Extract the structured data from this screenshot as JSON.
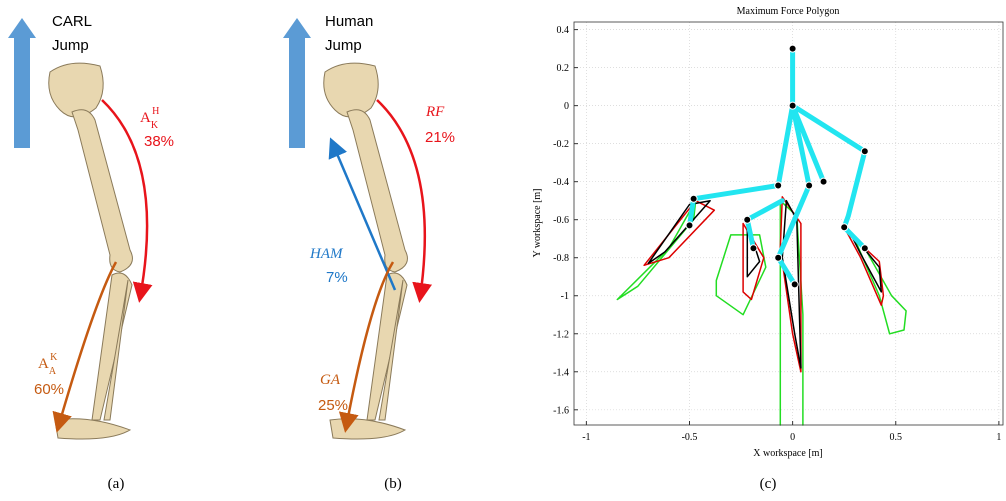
{
  "panel_a": {
    "caption": "(a)",
    "arrow_title": "CARL",
    "arrow_subtitle": "Jump",
    "upper_label": {
      "base": "A",
      "sup": "H",
      "sub": "K"
    },
    "upper_value": "38%",
    "lower_label": {
      "base": "A",
      "sup": "K",
      "sub": "A"
    },
    "lower_value": "60%"
  },
  "panel_b": {
    "caption": "(b)",
    "arrow_title": "Human",
    "arrow_subtitle": "Jump",
    "rf_label": "RF",
    "rf_value": "21%",
    "ham_label": "HAM",
    "ham_value": "7%",
    "ga_label": "GA",
    "ga_value": "25%"
  },
  "chart_data": {
    "type": "line",
    "caption": "(c)",
    "title": "Maximum Force Polygon",
    "x_label": "X workspace [m]",
    "y_label": "Y workspace [m]",
    "xlim": [
      -1.06,
      1.02
    ],
    "ylim": [
      -1.68,
      0.44
    ],
    "xticks": [
      -1,
      -0.5,
      0,
      0.5,
      1
    ],
    "yticks": [
      -1.6,
      -1.4,
      -1.2,
      -1,
      -0.8,
      -0.6,
      -0.4,
      -0.2,
      0,
      0.2,
      0.4
    ],
    "grid": true,
    "series": [
      {
        "color": "#22dd22",
        "width": 1.5,
        "x": [
          -0.47,
          -0.6,
          -0.85,
          -0.75,
          -0.48,
          -0.47,
          null,
          -0.3,
          -0.37,
          -0.37,
          -0.24,
          -0.13,
          -0.16,
          -0.3,
          null,
          -0.06,
          -0.06,
          null,
          0.05,
          0.05,
          0.02,
          -0.06,
          null,
          0.25,
          0.35,
          0.48,
          0.55,
          0.54,
          0.47,
          0.42,
          0.3,
          0.25
        ],
        "y": [
          -0.5,
          -0.75,
          -1.02,
          -0.95,
          -0.6,
          -0.5,
          null,
          -0.68,
          -0.92,
          -1.0,
          -1.1,
          -0.85,
          -0.68,
          -0.68,
          null,
          -0.5,
          -1.68,
          null,
          -1.68,
          -1.1,
          -0.58,
          -0.5,
          null,
          -0.64,
          -0.75,
          -1.0,
          -1.08,
          -1.18,
          -1.2,
          -1.0,
          -0.7,
          -0.64
        ]
      },
      {
        "color": "#dd0000",
        "width": 1.5,
        "x": [
          -0.47,
          -0.72,
          -0.6,
          -0.38,
          -0.47,
          null,
          -0.24,
          -0.24,
          -0.2,
          -0.14,
          -0.24,
          null,
          -0.05,
          -0.06,
          0.0,
          0.04,
          0.04,
          -0.05,
          null,
          0.26,
          0.42,
          0.44,
          0.43,
          0.33,
          0.26
        ],
        "y": [
          -0.5,
          -0.84,
          -0.8,
          -0.55,
          -0.5,
          null,
          -0.62,
          -0.98,
          -1.02,
          -0.8,
          -0.62,
          null,
          -0.48,
          -0.75,
          -1.2,
          -1.4,
          -0.62,
          -0.48,
          null,
          -0.66,
          -0.82,
          -1.0,
          -1.05,
          -0.8,
          -0.66
        ]
      },
      {
        "color": "#000000",
        "width": 1.5,
        "x": [
          -0.5,
          -0.7,
          -0.62,
          -0.4,
          -0.5,
          null,
          -0.22,
          -0.22,
          -0.16,
          -0.22,
          null,
          -0.03,
          -0.05,
          0.01,
          0.04,
          0.02,
          -0.03,
          null,
          0.27,
          0.42,
          0.43,
          0.33,
          0.27
        ],
        "y": [
          -0.52,
          -0.83,
          -0.77,
          -0.5,
          -0.52,
          null,
          -0.62,
          -0.9,
          -0.82,
          -0.62,
          null,
          -0.5,
          -0.8,
          -1.2,
          -1.38,
          -0.6,
          -0.5,
          null,
          -0.65,
          -0.85,
          -0.98,
          -0.78,
          -0.65
        ]
      },
      {
        "color": "#22e5f0",
        "width": 5,
        "x": [
          0,
          0,
          null,
          0,
          0.35,
          0.27,
          0.25,
          null,
          0,
          -0.07,
          -0.48,
          -0.5,
          null,
          0,
          0.08,
          -0.07,
          0.01,
          null,
          0,
          0.15,
          null,
          -0.05,
          -0.22,
          -0.19,
          null,
          0.25,
          0.35
        ],
        "y": [
          0.3,
          0,
          null,
          0,
          -0.24,
          -0.58,
          -0.64,
          null,
          0,
          -0.42,
          -0.49,
          -0.63,
          null,
          0,
          -0.42,
          -0.8,
          -0.94,
          null,
          0,
          -0.4,
          null,
          -0.5,
          -0.6,
          -0.75,
          null,
          -0.64,
          -0.75
        ]
      },
      {
        "color": "#000000",
        "marker": true,
        "x": [
          0,
          0,
          0.35,
          -0.48,
          -0.07,
          0.08,
          0.15,
          0.25,
          0.35,
          -0.5,
          -0.22,
          -0.19,
          -0.07,
          0.01
        ],
        "y": [
          0.3,
          0,
          -0.24,
          -0.49,
          -0.42,
          -0.42,
          -0.4,
          -0.64,
          -0.75,
          -0.63,
          -0.6,
          -0.75,
          -0.8,
          -0.94
        ]
      }
    ]
  }
}
